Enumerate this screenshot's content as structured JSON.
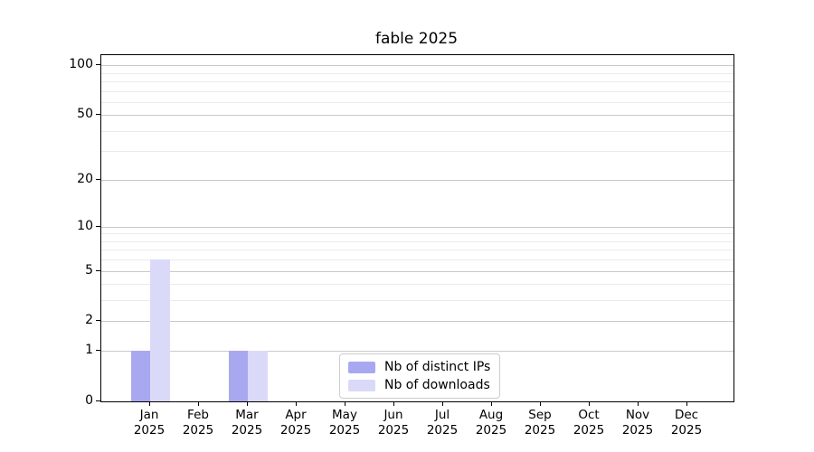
{
  "chart_data": {
    "type": "bar",
    "title": "fable 2025",
    "categories": [
      "Jan",
      "Feb",
      "Mar",
      "Apr",
      "May",
      "Jun",
      "Jul",
      "Aug",
      "Sep",
      "Oct",
      "Nov",
      "Dec"
    ],
    "x_year_label": "2025",
    "series": [
      {
        "name": "Nb of distinct IPs",
        "color": "#a8a8f0",
        "values": [
          1,
          0,
          1,
          0,
          0,
          0,
          0,
          0,
          0,
          0,
          0,
          0
        ]
      },
      {
        "name": "Nb of downloads",
        "color": "#dadaf8",
        "values": [
          6,
          0,
          1,
          0,
          0,
          0,
          0,
          0,
          0,
          0,
          0,
          0
        ]
      }
    ],
    "y_scale": "log1p",
    "ylim": [
      0,
      115
    ],
    "y_axis_ticks": [
      0,
      1,
      2,
      5,
      10,
      20,
      50,
      100
    ],
    "y_minor_gridlines": [
      3,
      4,
      6,
      7,
      8,
      9,
      30,
      40,
      60,
      70,
      80,
      90
    ],
    "grid": true,
    "legend_position": "lower center",
    "colors": {
      "major_grid": "#c9c9c9",
      "minor_grid": "#ebebeb",
      "spine": "#000000",
      "text": "#000000",
      "legend_border": "#cccccc"
    }
  }
}
